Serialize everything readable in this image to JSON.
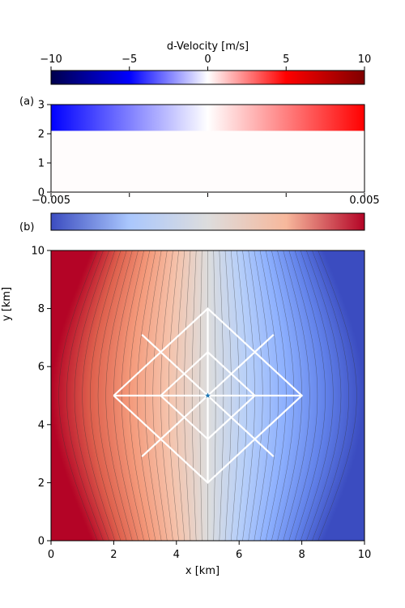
{
  "chart_data": [
    {
      "type": "colorbar",
      "label": "d-Velocity [m/s]",
      "range": [
        -10,
        10
      ],
      "ticks": [
        "−10",
        "−5",
        "0",
        "5",
        "10"
      ],
      "tick_values": [
        -10,
        -5,
        0,
        5,
        10
      ],
      "colormap": "seismic",
      "colors": [
        "#00004c",
        "#0000ff",
        "#ffffff",
        "#ff0000",
        "#800000"
      ]
    },
    {
      "type": "heatmap",
      "panel_label": "(a)",
      "xlim": [
        0,
        10
      ],
      "ylim": [
        0,
        3
      ],
      "yticks": [
        0,
        1,
        2,
        3
      ],
      "layer_boundary_y": 2.1,
      "top_layer_dvelocity_range": [
        -10,
        10
      ],
      "bottom_layer_dvelocity": 0
    },
    {
      "type": "colorbar",
      "range": [
        -0.005,
        0.005
      ],
      "tick_labels": [
        "−0.005",
        "0.005"
      ],
      "tick_values": [
        -0.005,
        0.005
      ],
      "minor_ticks": 5,
      "colormap": "coolwarm",
      "colors": [
        "#3b4cc0",
        "#aac7fd",
        "#dddddd",
        "#f7b89c",
        "#b40426"
      ]
    },
    {
      "type": "heatmap",
      "panel_label": "(b)",
      "xlabel": "x [km]",
      "ylabel": "y [km]",
      "xlim": [
        0,
        10
      ],
      "ylim": [
        0,
        10
      ],
      "xticks": [
        0,
        2,
        4,
        6,
        8,
        10
      ],
      "yticks": [
        0,
        2,
        4,
        6,
        8,
        10
      ],
      "value_range": [
        -0.005,
        0.005
      ],
      "contour_count": 40,
      "source": {
        "x": 5,
        "y": 5,
        "marker": "star",
        "color": "#1f77b4"
      },
      "survey_lines": [
        [
          [
            5,
            2
          ],
          [
            5,
            8
          ]
        ],
        [
          [
            2,
            5
          ],
          [
            8,
            5
          ]
        ],
        [
          [
            2,
            5
          ],
          [
            5,
            8
          ],
          [
            8,
            5
          ],
          [
            5,
            2
          ],
          [
            2,
            5
          ]
        ],
        [
          [
            3.5,
            5
          ],
          [
            5,
            6.5
          ],
          [
            6.5,
            5
          ],
          [
            5,
            3.5
          ],
          [
            3.5,
            5
          ]
        ],
        [
          [
            2.9,
            7.1
          ],
          [
            7.1,
            2.9
          ]
        ],
        [
          [
            2.9,
            2.9
          ],
          [
            7.1,
            7.1
          ]
        ]
      ],
      "line_color": "#ffffff"
    }
  ]
}
